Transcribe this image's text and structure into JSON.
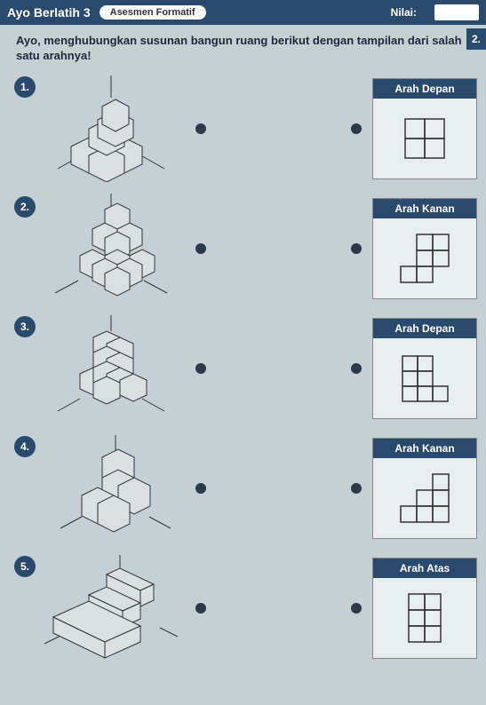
{
  "header": {
    "title": "Ayo Berlatih 3",
    "pill": "Asesmen Formatif",
    "nilai_label": "Nilai:"
  },
  "side_tab": "2.",
  "instruction": "Ayo, menghubungkan susunan bangun ruang berikut dengan tampilan dari salah satu arahnya!",
  "rows": [
    {
      "num": "1.",
      "answer_label": "Arah Depan"
    },
    {
      "num": "2.",
      "answer_label": "Arah Kanan"
    },
    {
      "num": "3.",
      "answer_label": "Arah Depan"
    },
    {
      "num": "4.",
      "answer_label": "Arah Kanan"
    },
    {
      "num": "5.",
      "answer_label": "Arah Atas"
    }
  ],
  "answer_grids": [
    {
      "cells": [
        [
          0,
          0
        ],
        [
          1,
          0
        ],
        [
          0,
          1
        ],
        [
          1,
          1
        ]
      ],
      "size": 22
    },
    {
      "cells": [
        [
          1,
          0
        ],
        [
          2,
          0
        ],
        [
          1,
          1
        ],
        [
          2,
          1
        ],
        [
          0,
          2
        ],
        [
          1,
          2
        ]
      ],
      "size": 18
    },
    {
      "cells": [
        [
          0,
          0
        ],
        [
          1,
          0
        ],
        [
          0,
          1
        ],
        [
          1,
          1
        ],
        [
          0,
          2
        ],
        [
          1,
          2
        ],
        [
          2,
          2
        ]
      ],
      "size": 17
    },
    {
      "cells": [
        [
          2,
          0
        ],
        [
          1,
          1
        ],
        [
          2,
          1
        ],
        [
          0,
          2
        ],
        [
          1,
          2
        ],
        [
          2,
          2
        ]
      ],
      "size": 18
    },
    {
      "cells": [
        [
          0,
          0
        ],
        [
          1,
          0
        ],
        [
          0,
          1
        ],
        [
          1,
          1
        ],
        [
          0,
          2
        ],
        [
          1,
          2
        ]
      ],
      "size": 18
    }
  ],
  "colors": {
    "header_bg": "#2a4a6b",
    "page_bg": "#c5d0d4",
    "cube_fill": "#d8e0e2",
    "stroke": "#333333"
  }
}
